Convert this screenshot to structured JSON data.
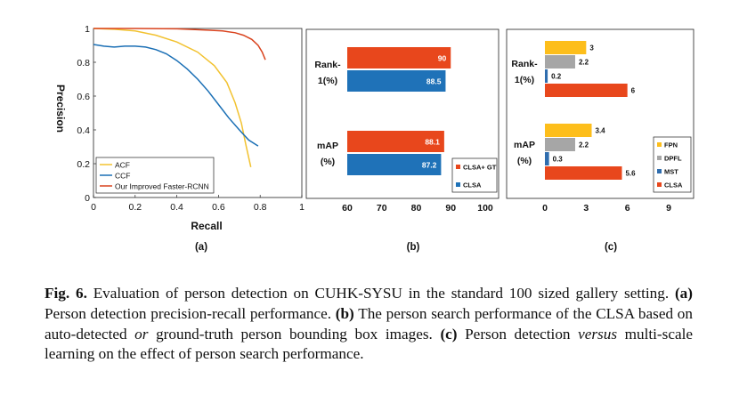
{
  "panels": [
    {
      "id": "a",
      "panel_label": "(a)",
      "chart_data": {
        "type": "line",
        "xlabel": "Recall",
        "ylabel": "Precision",
        "xlim": [
          0,
          1
        ],
        "ylim": [
          0,
          1
        ],
        "x_ticks": [
          "0",
          "0.2",
          "0.4",
          "0.6",
          "0.8",
          "1"
        ],
        "y_ticks": [
          "0",
          "0.2",
          "0.4",
          "0.6",
          "0.8",
          "1"
        ],
        "grid": false,
        "legend_position": "bottom-left",
        "series": [
          {
            "name": "ACF",
            "color": "#F2C230",
            "points": [
              [
                0,
                1.0
              ],
              [
                0.1,
                0.995
              ],
              [
                0.2,
                0.985
              ],
              [
                0.3,
                0.96
              ],
              [
                0.4,
                0.92
              ],
              [
                0.5,
                0.86
              ],
              [
                0.58,
                0.78
              ],
              [
                0.64,
                0.68
              ],
              [
                0.68,
                0.56
              ],
              [
                0.71,
                0.44
              ],
              [
                0.73,
                0.32
              ],
              [
                0.755,
                0.18
              ]
            ]
          },
          {
            "name": "CCF",
            "color": "#1A6FB5",
            "points": [
              [
                0,
                0.905
              ],
              [
                0.05,
                0.895
              ],
              [
                0.1,
                0.89
              ],
              [
                0.15,
                0.895
              ],
              [
                0.2,
                0.895
              ],
              [
                0.25,
                0.89
              ],
              [
                0.3,
                0.875
              ],
              [
                0.35,
                0.85
              ],
              [
                0.4,
                0.81
              ],
              [
                0.45,
                0.76
              ],
              [
                0.5,
                0.7
              ],
              [
                0.55,
                0.63
              ],
              [
                0.6,
                0.55
              ],
              [
                0.65,
                0.47
              ],
              [
                0.7,
                0.4
              ],
              [
                0.745,
                0.34
              ],
              [
                0.79,
                0.305
              ]
            ]
          },
          {
            "name": "Our Improved Faster-RCNN",
            "color": "#D9431E",
            "points": [
              [
                0,
                1.0
              ],
              [
                0.2,
                1.0
              ],
              [
                0.4,
                0.998
              ],
              [
                0.55,
                0.99
              ],
              [
                0.62,
                0.985
              ],
              [
                0.68,
                0.975
              ],
              [
                0.72,
                0.96
              ],
              [
                0.76,
                0.935
              ],
              [
                0.79,
                0.9
              ],
              [
                0.81,
                0.86
              ],
              [
                0.825,
                0.815
              ]
            ]
          }
        ]
      }
    },
    {
      "id": "b",
      "panel_label": "(b)",
      "chart_data": {
        "type": "bar",
        "orientation": "horizontal",
        "categories": [
          "Rank-\n1(%)",
          "mAP\n(%)"
        ],
        "category_lines": [
          [
            "Rank-",
            "1(%)"
          ],
          [
            "mAP",
            "(%)"
          ]
        ],
        "xlim": [
          60,
          100
        ],
        "x_ticks": [
          "60",
          "70",
          "80",
          "90",
          "100"
        ],
        "legend_position": "bottom-right",
        "series": [
          {
            "name": "CLSA+ GT",
            "color": "#E8471C",
            "values": [
              90,
              88.1
            ],
            "labels": [
              "90",
              "88.1"
            ]
          },
          {
            "name": "CLSA",
            "color": "#1F72B8",
            "values": [
              88.5,
              87.2
            ],
            "labels": [
              "88.5",
              "87.2"
            ]
          }
        ]
      }
    },
    {
      "id": "c",
      "panel_label": "(c)",
      "chart_data": {
        "type": "bar",
        "orientation": "horizontal",
        "categories": [
          "Rank-\n1(%)",
          "mAP\n(%)"
        ],
        "category_lines": [
          [
            "Rank-",
            "1(%)"
          ],
          [
            "mAP",
            "(%)"
          ]
        ],
        "xlim": [
          0,
          9
        ],
        "x_ticks": [
          "0",
          "3",
          "6",
          "9"
        ],
        "legend_position": "bottom-right",
        "series": [
          {
            "name": "FPN",
            "color": "#FDBE1B",
            "values": [
              3,
              3.4
            ],
            "labels": [
              "3",
              "3.4"
            ]
          },
          {
            "name": "DPFL",
            "color": "#A6A6A6",
            "values": [
              2.2,
              2.2
            ],
            "labels": [
              "2.2",
              "2.2"
            ]
          },
          {
            "name": "MST",
            "color": "#2F6DAE",
            "values": [
              0.2,
              0.3
            ],
            "labels": [
              "0.2",
              "0.3"
            ]
          },
          {
            "name": "CLSA",
            "color": "#E8471C",
            "values": [
              6,
              5.6
            ],
            "labels": [
              "6",
              "5.6"
            ]
          }
        ]
      }
    }
  ],
  "caption": {
    "label": "Fig. 6.",
    "text_1": " Evaluation of person detection on CUHK-SYSU in the standard 100 sized gallery setting. ",
    "a_label": "(a)",
    "text_2": " Person detection precision-recall performance. ",
    "b_label": "(b)",
    "text_3": " The person search performance of the CLSA based on auto-detected ",
    "or_word": "or",
    "text_4": " ground-truth person bounding box images. ",
    "c_label": "(c)",
    "text_5": " Person detection ",
    "versus_word": "versus",
    "text_6": " multi-scale learning on the effect of person search performance."
  }
}
